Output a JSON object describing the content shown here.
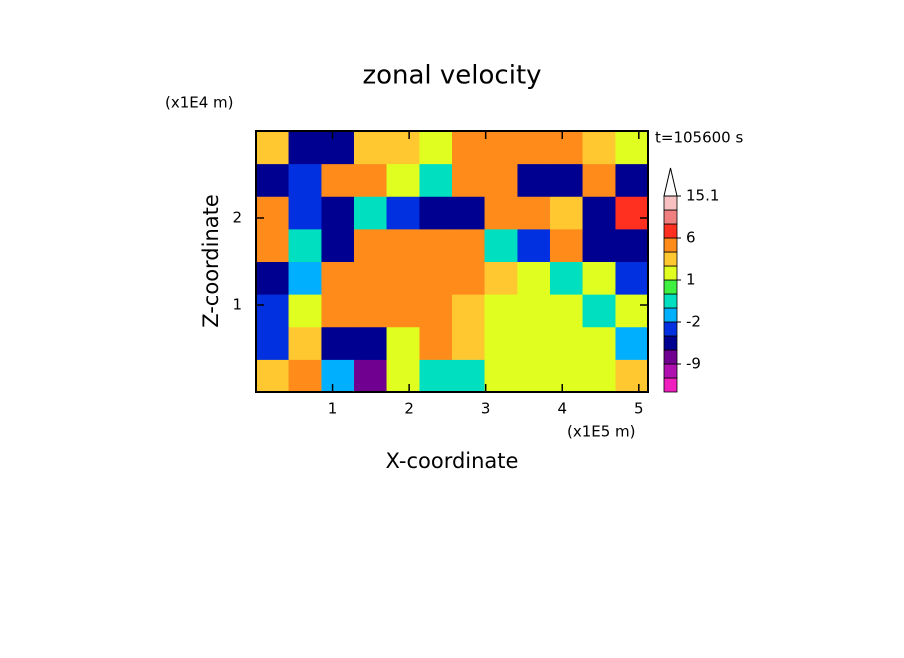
{
  "chart_data": {
    "type": "contourf",
    "title": "zonal velocity",
    "x_label": "X-coordinate",
    "y_label": "Z-coordinate",
    "x_unit": "(x1E5 m)",
    "y_unit": "(x1E4 m)",
    "time_label": "t=105600 s",
    "xlim": [
      0,
      5.12
    ],
    "ylim": [
      0,
      3
    ],
    "xticks": [
      1,
      2,
      3,
      4,
      5
    ],
    "yticks": [
      1,
      2
    ],
    "x": [
      0.21,
      0.64,
      1.07,
      1.49,
      1.92,
      2.35,
      2.77,
      3.2,
      3.63,
      4.05,
      4.48,
      4.91
    ],
    "y": [
      0.19,
      0.56,
      0.94,
      1.31,
      1.69,
      2.06,
      2.44,
      2.81
    ],
    "z": [
      [
        2,
        3,
        -2,
        -7,
        1,
        -1,
        -1,
        1,
        1,
        1,
        1,
        2
      ],
      [
        -3,
        2,
        -4,
        -6,
        1,
        3,
        2,
        1,
        1,
        1,
        1,
        -2
      ],
      [
        -3,
        1,
        4,
        5,
        4,
        3,
        2,
        1,
        1,
        1,
        -1,
        1
      ],
      [
        -4,
        -2,
        3,
        5,
        3,
        5,
        4,
        2,
        1,
        -1,
        1,
        -3
      ],
      [
        3,
        -1,
        -4,
        5,
        4,
        4,
        4,
        -1,
        -3,
        3,
        -4,
        -4
      ],
      [
        4,
        -3,
        -4,
        -1,
        -3,
        -4,
        -4,
        4,
        3,
        2,
        -4,
        8
      ],
      [
        -4,
        -3,
        4,
        4,
        1,
        -1,
        4,
        3,
        -4,
        -4,
        3,
        -4
      ],
      [
        2,
        -4,
        -4,
        2,
        2,
        1,
        3,
        3,
        4,
        5,
        2,
        1
      ]
    ],
    "levels": [
      -15,
      -12,
      -9,
      -6,
      -3,
      -2,
      -1,
      0,
      1,
      2,
      3,
      6,
      9,
      12,
      15.1
    ],
    "colors": [
      "#f020c0",
      "#b010b0",
      "#700090",
      "#000090",
      "#0030e0",
      "#00b0ff",
      "#00e0c0",
      "#40f040",
      "#e0ff20",
      "#ffc830",
      "#ff8c1a",
      "#ff3020",
      "#f08080",
      "#f8c0c0"
    ],
    "colorbar_ticks": [
      -9,
      -2,
      1,
      6,
      15.1
    ]
  }
}
